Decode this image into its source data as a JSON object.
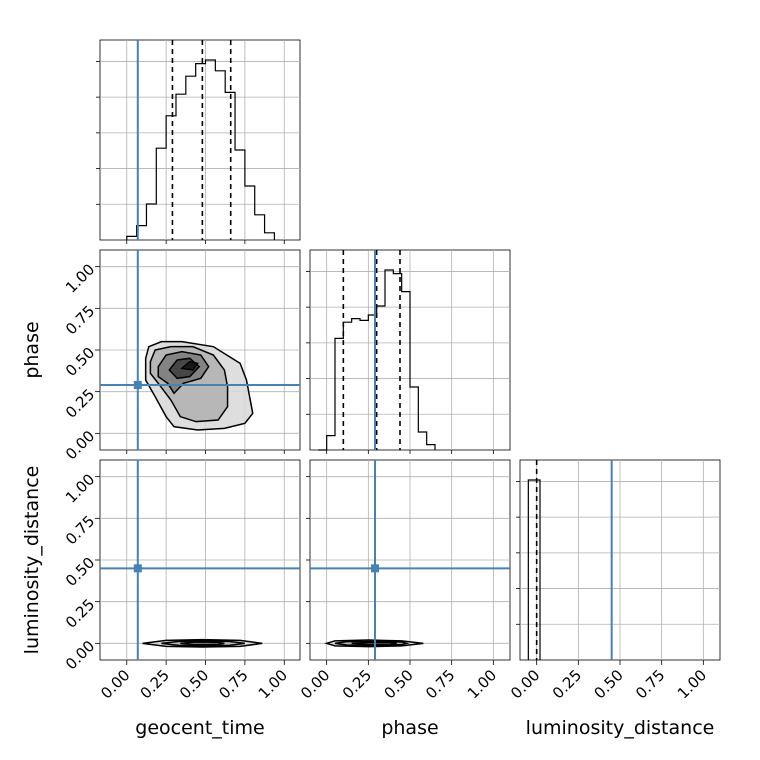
{
  "chart_data": {
    "type": "corner",
    "parameters": [
      "geocent_time",
      "phase",
      "luminosity_distance"
    ],
    "axis_labels": {
      "geocent_time": "geocent_time",
      "phase": "phase",
      "luminosity_distance": "luminosity_distance"
    },
    "ticks": [
      0.0,
      0.25,
      0.5,
      0.75,
      1.0
    ],
    "tick_labels": [
      "0.00",
      "0.25",
      "0.50",
      "0.75",
      "1.00"
    ],
    "grid": true,
    "colors": {
      "truth": "#4682b4",
      "histogram": "#000000",
      "contour": "#000000",
      "grid": "#b0b0b0"
    },
    "ranges": {
      "geocent_time": [
        -0.17,
        1.1
      ],
      "phase": [
        -0.1,
        1.1
      ],
      "luminosity_distance": [
        -0.1,
        1.1
      ]
    },
    "truths": {
      "geocent_time": 0.07,
      "phase": 0.29,
      "luminosity_distance": 0.45
    },
    "quantiles": {
      "geocent_time": [
        0.29,
        0.48,
        0.66
      ],
      "phase": [
        0.1,
        0.3,
        0.44
      ],
      "luminosity_distance": [
        0.0
      ]
    },
    "histograms": {
      "geocent_time": {
        "bin_edges": [
          0.0,
          0.0625,
          0.125,
          0.1875,
          0.25,
          0.3125,
          0.375,
          0.4375,
          0.5,
          0.5625,
          0.625,
          0.6875,
          0.75,
          0.8125,
          0.875,
          0.9375
        ],
        "counts": [
          0.02,
          0.08,
          0.2,
          0.51,
          0.69,
          0.81,
          0.91,
          0.98,
          1.0,
          0.94,
          0.82,
          0.5,
          0.3,
          0.14,
          0.04
        ]
      },
      "phase": {
        "bin_edges": [
          -0.05,
          0.0,
          0.05,
          0.1,
          0.15,
          0.2,
          0.25,
          0.3,
          0.35,
          0.4,
          0.45,
          0.5,
          0.55,
          0.6,
          0.65
        ],
        "counts": [
          0.0,
          0.08,
          0.62,
          0.71,
          0.73,
          0.72,
          0.75,
          0.8,
          1.0,
          0.98,
          0.88,
          0.35,
          0.1,
          0.03
        ]
      },
      "luminosity_distance": {
        "bin_edges": [
          -0.05,
          0.02
        ],
        "counts": [
          1.0
        ]
      }
    },
    "contours": {
      "phase_vs_geocent_time": {
        "levels": [
          [
            [
              0.12,
              0.45
            ],
            [
              0.14,
              0.52
            ],
            [
              0.22,
              0.55
            ],
            [
              0.35,
              0.55
            ],
            [
              0.55,
              0.52
            ],
            [
              0.72,
              0.42
            ],
            [
              0.76,
              0.32
            ],
            [
              0.8,
              0.12
            ],
            [
              0.75,
              0.06
            ],
            [
              0.62,
              0.03
            ],
            [
              0.45,
              0.02
            ],
            [
              0.3,
              0.04
            ],
            [
              0.25,
              0.1
            ],
            [
              0.18,
              0.22
            ],
            [
              0.12,
              0.32
            ]
          ],
          [
            [
              0.15,
              0.43
            ],
            [
              0.18,
              0.5
            ],
            [
              0.28,
              0.52
            ],
            [
              0.42,
              0.52
            ],
            [
              0.55,
              0.47
            ],
            [
              0.62,
              0.38
            ],
            [
              0.64,
              0.28
            ],
            [
              0.64,
              0.16
            ],
            [
              0.58,
              0.08
            ],
            [
              0.44,
              0.07
            ],
            [
              0.34,
              0.1
            ],
            [
              0.28,
              0.2
            ],
            [
              0.2,
              0.3
            ],
            [
              0.15,
              0.36
            ]
          ],
          [
            [
              0.2,
              0.4
            ],
            [
              0.25,
              0.47
            ],
            [
              0.35,
              0.49
            ],
            [
              0.47,
              0.47
            ],
            [
              0.52,
              0.4
            ],
            [
              0.47,
              0.33
            ],
            [
              0.36,
              0.3
            ],
            [
              0.3,
              0.24
            ],
            [
              0.26,
              0.3
            ],
            [
              0.2,
              0.34
            ]
          ],
          [
            [
              0.27,
              0.38
            ],
            [
              0.32,
              0.44
            ],
            [
              0.4,
              0.45
            ],
            [
              0.46,
              0.4
            ],
            [
              0.4,
              0.34
            ],
            [
              0.32,
              0.33
            ]
          ],
          [
            [
              0.35,
              0.39
            ],
            [
              0.4,
              0.43
            ],
            [
              0.45,
              0.42
            ],
            [
              0.42,
              0.38
            ]
          ]
        ]
      },
      "luminosity_distance_vs_geocent_time": {
        "levels": [
          [
            [
              0.1,
              0.0
            ],
            [
              0.25,
              0.018
            ],
            [
              0.48,
              0.022
            ],
            [
              0.72,
              0.018
            ],
            [
              0.86,
              0.0
            ],
            [
              0.72,
              -0.018
            ],
            [
              0.48,
              -0.022
            ],
            [
              0.25,
              -0.018
            ]
          ],
          [
            [
              0.22,
              0.0
            ],
            [
              0.33,
              0.012
            ],
            [
              0.48,
              0.015
            ],
            [
              0.65,
              0.012
            ],
            [
              0.75,
              0.0
            ],
            [
              0.65,
              -0.012
            ],
            [
              0.48,
              -0.015
            ],
            [
              0.33,
              -0.012
            ]
          ],
          [
            [
              0.34,
              0.0
            ],
            [
              0.42,
              0.007
            ],
            [
              0.5,
              0.008
            ],
            [
              0.58,
              0.006
            ],
            [
              0.62,
              0.0
            ],
            [
              0.58,
              -0.006
            ],
            [
              0.5,
              -0.008
            ],
            [
              0.42,
              -0.007
            ]
          ]
        ]
      },
      "luminosity_distance_vs_phase": {
        "levels": [
          [
            [
              0.0,
              0.0
            ],
            [
              0.05,
              0.015
            ],
            [
              0.25,
              0.02
            ],
            [
              0.45,
              0.015
            ],
            [
              0.58,
              0.0
            ],
            [
              0.45,
              -0.015
            ],
            [
              0.25,
              -0.02
            ],
            [
              0.05,
              -0.015
            ]
          ],
          [
            [
              0.05,
              0.0
            ],
            [
              0.12,
              0.01
            ],
            [
              0.3,
              0.012
            ],
            [
              0.45,
              0.008
            ],
            [
              0.48,
              0.0
            ],
            [
              0.45,
              -0.008
            ],
            [
              0.3,
              -0.012
            ],
            [
              0.12,
              -0.01
            ]
          ],
          [
            [
              0.15,
              0.0
            ],
            [
              0.25,
              0.006
            ],
            [
              0.38,
              0.006
            ],
            [
              0.42,
              0.0
            ],
            [
              0.38,
              -0.006
            ],
            [
              0.25,
              -0.006
            ]
          ]
        ]
      }
    }
  }
}
